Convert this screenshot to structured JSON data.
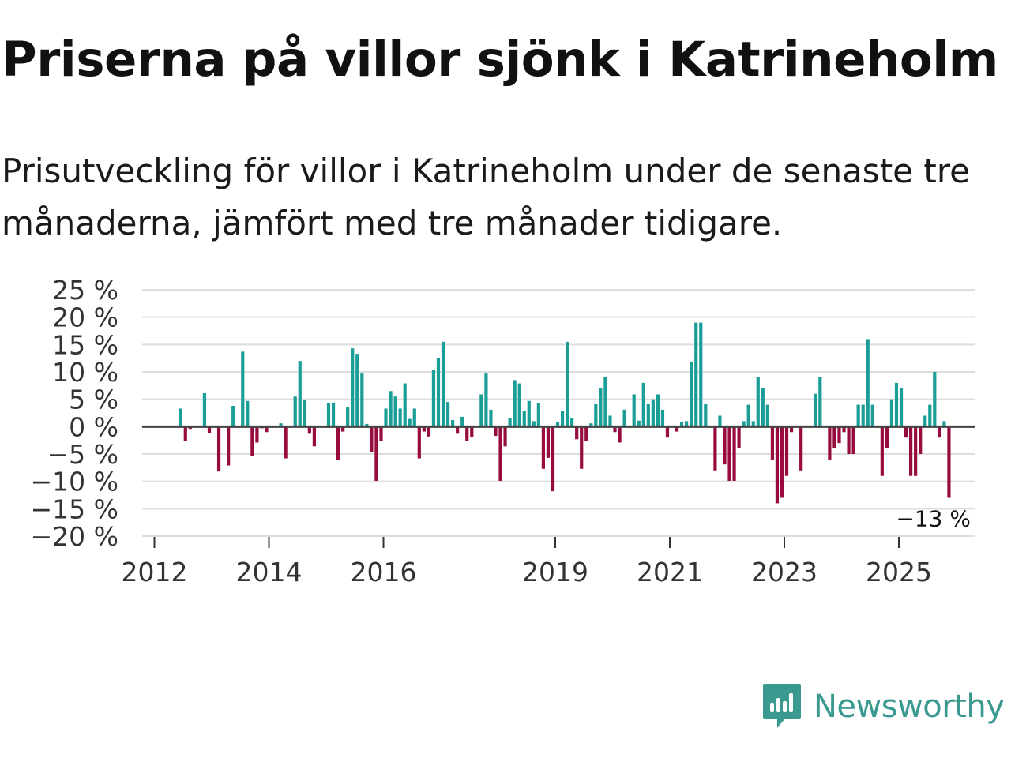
{
  "title": "Priserna på villor sjönk i Katrineholm",
  "subtitle": "Prisutveckling för villor i Katrineholm under de senaste tre månaderna, jämfört med tre månader tidigare.",
  "brand": "Newsworthy",
  "colors": {
    "positive": "#1a9e97",
    "negative": "#980b3e",
    "grid": "#dddddd",
    "zero_line": "#444444",
    "brand": "#3b9a8f"
  },
  "chart_data": {
    "type": "bar",
    "title": "Priserna på villor sjönk i Katrineholm",
    "xlabel": "",
    "ylabel": "",
    "ylim": [
      -20,
      25
    ],
    "yticks": [
      25,
      20,
      15,
      10,
      5,
      0,
      -5,
      -10,
      -15,
      -20
    ],
    "ytick_labels": [
      "25 %",
      "20 %",
      "15 %",
      "10 %",
      "5 %",
      "0 %",
      "−5 %",
      "−10 %",
      "−15 %",
      "−20 %"
    ],
    "xticks": [
      {
        "year": 2012,
        "label": "2012"
      },
      {
        "year": 2014,
        "label": "2014"
      },
      {
        "year": 2016,
        "label": "2016"
      },
      {
        "year": 2019,
        "label": "2019"
      },
      {
        "year": 2021,
        "label": "2021"
      },
      {
        "year": 2023,
        "label": "2023"
      },
      {
        "year": 2025,
        "label": "2025"
      }
    ],
    "x_start": {
      "year": 2012,
      "month": 1
    },
    "series_name": "Prisutveckling (%)",
    "monthly_values": [
      0,
      0,
      0,
      0,
      0,
      3.3,
      -2.6,
      -0.4,
      0,
      0,
      6.1,
      -1.2,
      0,
      -8.2,
      0,
      -7.1,
      3.8,
      0,
      13.7,
      4.7,
      -5.3,
      -2.9,
      -0.3,
      -1.0,
      0,
      0,
      0.6,
      -5.8,
      0,
      5.5,
      12.0,
      4.8,
      -1.3,
      -3.6,
      0,
      0,
      4.3,
      4.4,
      -6.1,
      -0.9,
      3.5,
      14.3,
      13.3,
      9.7,
      0.5,
      -4.7,
      -9.9,
      -2.7,
      3.3,
      6.5,
      5.5,
      3.3,
      7.9,
      1.4,
      3.3,
      -5.8,
      -0.9,
      -1.8,
      10.4,
      12.6,
      15.5,
      4.5,
      1.2,
      -1.3,
      1.8,
      -2.6,
      -1.9,
      0,
      5.9,
      9.7,
      3.1,
      -1.7,
      -9.9,
      -3.6,
      1.6,
      8.5,
      7.9,
      2.9,
      4.7,
      1.0,
      4.3,
      -7.7,
      -5.7,
      -11.8,
      0.8,
      2.8,
      15.5,
      1.6,
      -2.3,
      -7.7,
      -2.7,
      0.6,
      4.1,
      7.0,
      9.1,
      2.0,
      -1.0,
      -2.9,
      3.1,
      0,
      5.9,
      1.1,
      8.0,
      4.1,
      5.0,
      5.9,
      3.1,
      -2.0,
      0,
      -0.9,
      0.9,
      1.0,
      11.9,
      19.0,
      19.0,
      4.1,
      0,
      -8.0,
      2.0,
      -6.9,
      -9.9,
      -9.9,
      -3.9,
      1.0,
      4.0,
      1.0,
      9.0,
      7.0,
      4.0,
      -6.0,
      -14.0,
      -13.0,
      -9.0,
      -1.0,
      0,
      -8.0,
      0,
      0,
      6.0,
      9.0,
      0,
      -6.0,
      -4.0,
      -3.0,
      -1.0,
      -5.0,
      -5.0,
      4.0,
      4.0,
      16.0,
      4.0,
      0,
      -9.0,
      -4.0,
      5.0,
      8.0,
      7.0,
      -2.0,
      -9.0,
      -9.0,
      -5.0,
      2.0,
      4.0,
      10.0,
      -2.0,
      1.0,
      -13.0
    ],
    "last_value_label": "−13 %"
  }
}
